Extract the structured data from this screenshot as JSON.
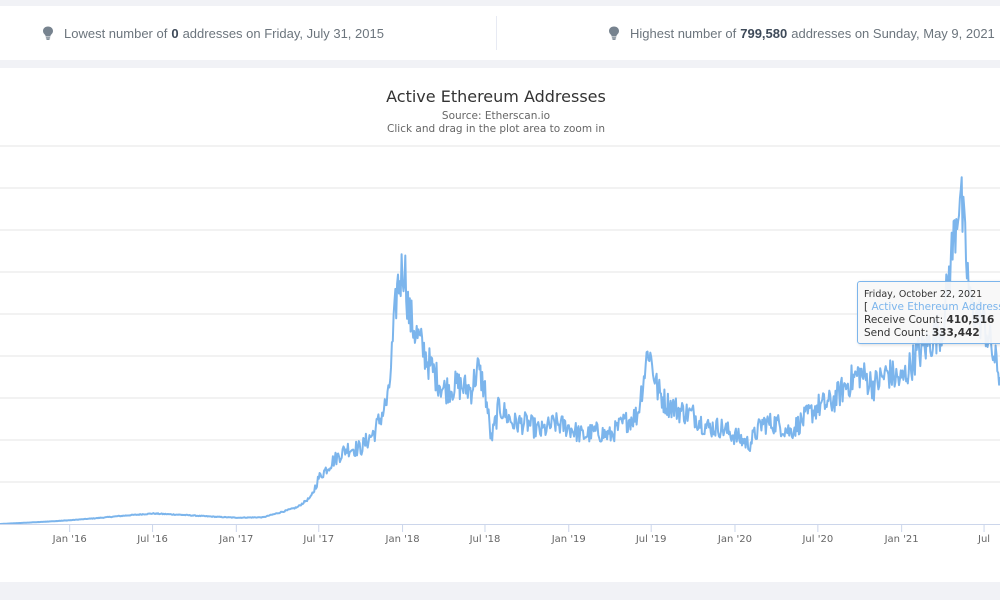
{
  "stats": {
    "lowest": {
      "prefix": "Lowest number of",
      "value": "0",
      "suffix": "addresses on Friday, July 31, 2015"
    },
    "highest": {
      "prefix": "Highest number of",
      "value": "799,580",
      "suffix": "addresses on Sunday, May 9, 2021"
    }
  },
  "colors": {
    "series": "#7cb5ec",
    "grid": "#e6e6e6",
    "axis": "#ccd6eb",
    "title": "#333333",
    "subtitle": "#666666"
  },
  "tooltip": {
    "date": "Friday, October 22, 2021",
    "bracket": "[",
    "series_name": "Active Ethereum Addresses",
    "receive_label": "Receive Count:",
    "receive_value": "410,516",
    "send_label": "Send Count:",
    "send_value": "333,442"
  },
  "chart_data": {
    "type": "line",
    "title": "Active Ethereum Addresses",
    "subtitle_lines": [
      "Source: Etherscan.io",
      "Click and drag in the plot area to zoom in"
    ],
    "xlabel": "",
    "ylabel": "",
    "grid": true,
    "legend": "none",
    "ylim": [
      0,
      900000
    ],
    "xlim": [
      "2015-08-01",
      "2021-08-05"
    ],
    "x_tick_labels": [
      "Jan '16",
      "Jul '16",
      "Jan '17",
      "Jul '17",
      "Jan '18",
      "Jul '18",
      "Jan '19",
      "Jul '19",
      "Jan '20",
      "Jul '20",
      "Jan '21",
      "Jul"
    ],
    "x_tick_dates": [
      "2016-01-01",
      "2016-07-01",
      "2017-01-01",
      "2017-07-01",
      "2018-01-01",
      "2018-07-01",
      "2019-01-01",
      "2019-07-01",
      "2020-01-01",
      "2020-07-01",
      "2021-01-01",
      "2021-07-01"
    ],
    "series": [
      {
        "name": "Active Ethereum Addresses",
        "x": [
          "2015-08-01",
          "2015-11-01",
          "2016-01-01",
          "2016-03-01",
          "2016-05-01",
          "2016-07-01",
          "2016-09-01",
          "2016-11-01",
          "2017-01-01",
          "2017-03-01",
          "2017-04-15",
          "2017-05-15",
          "2017-06-15",
          "2017-07-01",
          "2017-08-01",
          "2017-09-01",
          "2017-10-01",
          "2017-11-01",
          "2017-12-01",
          "2017-12-20",
          "2018-01-05",
          "2018-01-15",
          "2018-02-01",
          "2018-03-01",
          "2018-04-01",
          "2018-05-01",
          "2018-06-01",
          "2018-06-15",
          "2018-07-01",
          "2018-07-15",
          "2018-08-01",
          "2018-09-01",
          "2018-10-01",
          "2018-11-01",
          "2018-12-01",
          "2019-01-01",
          "2019-02-01",
          "2019-03-01",
          "2019-04-01",
          "2019-05-01",
          "2019-06-01",
          "2019-06-25",
          "2019-07-15",
          "2019-08-01",
          "2019-09-01",
          "2019-10-01",
          "2019-11-01",
          "2019-12-01",
          "2020-01-01",
          "2020-02-01",
          "2020-03-01",
          "2020-04-01",
          "2020-05-01",
          "2020-06-01",
          "2020-07-01",
          "2020-08-01",
          "2020-09-01",
          "2020-10-01",
          "2020-11-01",
          "2020-12-01",
          "2021-01-01",
          "2021-02-01",
          "2021-03-01",
          "2021-04-01",
          "2021-05-09",
          "2021-06-01",
          "2021-07-01",
          "2021-08-05"
        ],
        "values": [
          0,
          5000,
          9000,
          14000,
          20000,
          25000,
          22000,
          18000,
          15000,
          16000,
          30000,
          40000,
          65000,
          110000,
          150000,
          180000,
          180000,
          220000,
          300000,
          560000,
          620000,
          500000,
          450000,
          380000,
          320000,
          330000,
          320000,
          370000,
          320000,
          200000,
          280000,
          240000,
          240000,
          220000,
          240000,
          230000,
          210000,
          220000,
          210000,
          240000,
          260000,
          420000,
          320000,
          290000,
          270000,
          260000,
          230000,
          230000,
          210000,
          190000,
          240000,
          240000,
          220000,
          250000,
          280000,
          290000,
          330000,
          360000,
          330000,
          360000,
          340000,
          400000,
          430000,
          470000,
          799580,
          520000,
          480000,
          350000
        ]
      }
    ]
  }
}
